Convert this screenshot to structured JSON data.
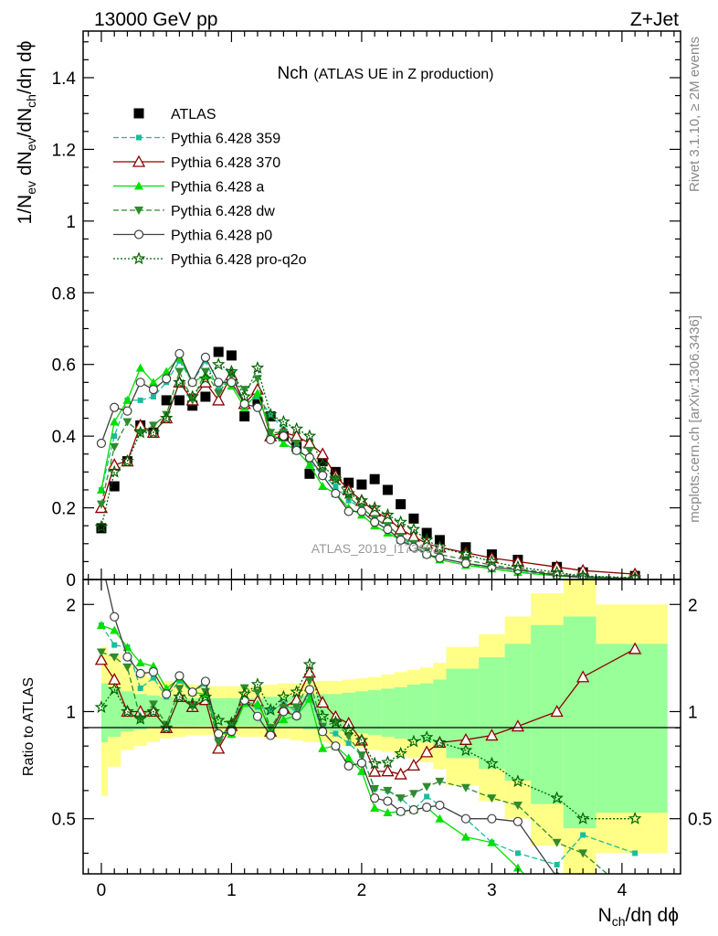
{
  "header": {
    "left": "13000 GeV pp",
    "right": "Z+Jet"
  },
  "side_labels": {
    "rivet": "Rivet 3.1.10, ≥ 2M events",
    "mcplots": "mcplots.cern.ch [arXiv:1306.3436]"
  },
  "watermark": "ATLAS_2019_I1736531",
  "chart_data": {
    "type": "line",
    "title_main": "Nch",
    "title_sub": "(ATLAS UE in Z production)",
    "xlabel": "N_ch/dη dϕ",
    "ylabel": "1/N_ev dN_ev/dN_ch/dη dϕ",
    "ratio_ylabel": "Ratio to ATLAS",
    "xlim": [
      -0.14,
      4.45
    ],
    "ylim": [
      0,
      1.53
    ],
    "ratio_ylim": [
      0.35,
      2.35
    ],
    "ratio_scale": "log",
    "legend_position": "top-left",
    "x_ticks": [
      "0",
      "1",
      "2",
      "3",
      "4"
    ],
    "y_ticks": [
      "0",
      "0.2",
      "0.4",
      "0.6",
      "0.8",
      "1",
      "1.2",
      "1.4"
    ],
    "ratio_ticks": [
      "0.5",
      "1",
      "2"
    ],
    "x": [
      0.0,
      0.1,
      0.2,
      0.3,
      0.4,
      0.5,
      0.6,
      0.7,
      0.8,
      0.9,
      1.0,
      1.1,
      1.2,
      1.3,
      1.4,
      1.5,
      1.6,
      1.7,
      1.8,
      1.9,
      2.0,
      2.1,
      2.2,
      2.3,
      2.4,
      2.5,
      2.6,
      2.8,
      3.0,
      3.2,
      3.5,
      3.7,
      4.1
    ],
    "band_edges": [
      0.0,
      0.05,
      0.15,
      0.25,
      0.35,
      0.45,
      0.55,
      0.65,
      0.75,
      0.85,
      0.95,
      1.05,
      1.15,
      1.25,
      1.35,
      1.45,
      1.55,
      1.65,
      1.75,
      1.85,
      1.95,
      2.05,
      2.15,
      2.25,
      2.35,
      2.45,
      2.55,
      2.65,
      2.9,
      3.1,
      3.3,
      3.55,
      3.8,
      4.35
    ],
    "band_outer": [
      [
        0.58,
        1.52
      ],
      [
        0.7,
        1.45
      ],
      [
        0.78,
        1.35
      ],
      [
        0.8,
        1.28
      ],
      [
        0.82,
        1.25
      ],
      [
        0.84,
        1.22
      ],
      [
        0.85,
        1.2
      ],
      [
        0.86,
        1.19
      ],
      [
        0.86,
        1.18
      ],
      [
        0.86,
        1.18
      ],
      [
        0.86,
        1.18
      ],
      [
        0.85,
        1.18
      ],
      [
        0.85,
        1.18
      ],
      [
        0.84,
        1.19
      ],
      [
        0.84,
        1.2
      ],
      [
        0.83,
        1.2
      ],
      [
        0.82,
        1.21
      ],
      [
        0.82,
        1.22
      ],
      [
        0.81,
        1.22
      ],
      [
        0.8,
        1.23
      ],
      [
        0.79,
        1.24
      ],
      [
        0.78,
        1.25
      ],
      [
        0.77,
        1.27
      ],
      [
        0.75,
        1.29
      ],
      [
        0.74,
        1.31
      ],
      [
        0.72,
        1.33
      ],
      [
        0.69,
        1.37
      ],
      [
        0.62,
        1.52
      ],
      [
        0.56,
        1.65
      ],
      [
        0.5,
        1.85
      ],
      [
        0.42,
        2.15
      ],
      [
        0.35,
        2.35
      ],
      [
        0.4,
        2.0
      ]
    ],
    "band_inner": [
      [
        0.82,
        1.2
      ],
      [
        0.85,
        1.17
      ],
      [
        0.88,
        1.14
      ],
      [
        0.89,
        1.12
      ],
      [
        0.9,
        1.11
      ],
      [
        0.9,
        1.1
      ],
      [
        0.91,
        1.1
      ],
      [
        0.91,
        1.09
      ],
      [
        0.91,
        1.09
      ],
      [
        0.91,
        1.09
      ],
      [
        0.91,
        1.09
      ],
      [
        0.91,
        1.09
      ],
      [
        0.91,
        1.09
      ],
      [
        0.9,
        1.1
      ],
      [
        0.9,
        1.1
      ],
      [
        0.9,
        1.11
      ],
      [
        0.89,
        1.11
      ],
      [
        0.89,
        1.12
      ],
      [
        0.88,
        1.12
      ],
      [
        0.88,
        1.13
      ],
      [
        0.87,
        1.14
      ],
      [
        0.86,
        1.15
      ],
      [
        0.85,
        1.16
      ],
      [
        0.84,
        1.17
      ],
      [
        0.83,
        1.19
      ],
      [
        0.82,
        1.2
      ],
      [
        0.8,
        1.23
      ],
      [
        0.74,
        1.32
      ],
      [
        0.69,
        1.42
      ],
      [
        0.64,
        1.55
      ],
      [
        0.55,
        1.75
      ],
      [
        0.47,
        1.85
      ],
      [
        0.52,
        1.55
      ]
    ],
    "series": [
      {
        "name": "ATLAS",
        "color": "#000000",
        "style": "data",
        "marker": "square",
        "values": [
          0.143,
          0.26,
          0.33,
          0.43,
          0.41,
          0.5,
          0.5,
          0.485,
          0.51,
          0.635,
          0.625,
          0.455,
          0.495,
          0.455,
          0.4,
          0.37,
          0.295,
          0.33,
          0.3,
          0.27,
          0.265,
          0.28,
          0.25,
          0.21,
          0.17,
          0.13,
          0.11,
          0.09,
          0.07,
          0.055,
          0.035,
          0.02,
          0.01
        ]
      },
      {
        "name": "Pythia 6.428 359",
        "color": "#1abc9c",
        "dash": "6,3",
        "marker": "square-small",
        "values": [
          0.25,
          0.4,
          0.5,
          0.5,
          0.51,
          0.55,
          0.61,
          0.55,
          0.61,
          0.53,
          0.58,
          0.49,
          0.51,
          0.46,
          0.42,
          0.37,
          0.33,
          0.29,
          0.26,
          0.22,
          0.2,
          0.17,
          0.15,
          0.12,
          0.09,
          0.075,
          0.06,
          0.045,
          0.03,
          0.022,
          0.013,
          0.009,
          0.004
        ]
      },
      {
        "name": "Pythia 6.428 370",
        "color": "#8b0000",
        "dash": "",
        "marker": "triangle-up-open",
        "values": [
          0.2,
          0.32,
          0.33,
          0.43,
          0.41,
          0.45,
          0.55,
          0.5,
          0.55,
          0.5,
          0.57,
          0.49,
          0.53,
          0.4,
          0.41,
          0.4,
          0.38,
          0.35,
          0.29,
          0.25,
          0.22,
          0.19,
          0.17,
          0.14,
          0.12,
          0.1,
          0.09,
          0.075,
          0.06,
          0.05,
          0.035,
          0.025,
          0.015
        ]
      },
      {
        "name": "Pythia 6.428 a",
        "color": "#00e000",
        "dash": "",
        "marker": "triangle-up",
        "values": [
          0.25,
          0.44,
          0.5,
          0.59,
          0.55,
          0.58,
          0.62,
          0.55,
          0.57,
          0.55,
          0.54,
          0.48,
          0.52,
          0.41,
          0.38,
          0.36,
          0.32,
          0.26,
          0.24,
          0.2,
          0.18,
          0.15,
          0.13,
          0.11,
          0.09,
          0.07,
          0.055,
          0.04,
          0.03,
          0.02,
          0.01,
          0.005,
          0.002
        ]
      },
      {
        "name": "Pythia 6.428 dw",
        "color": "#2e8b2e",
        "dash": "6,3",
        "marker": "triangle-down",
        "values": [
          0.21,
          0.37,
          0.44,
          0.41,
          0.43,
          0.46,
          0.58,
          0.5,
          0.58,
          0.52,
          0.57,
          0.53,
          0.56,
          0.41,
          0.41,
          0.38,
          0.36,
          0.3,
          0.28,
          0.23,
          0.2,
          0.17,
          0.15,
          0.12,
          0.1,
          0.08,
          0.07,
          0.055,
          0.04,
          0.03,
          0.015,
          0.008,
          0.003
        ]
      },
      {
        "name": "Pythia 6.428 p0",
        "color": "#404040",
        "dash": "",
        "marker": "circle-open",
        "values": [
          0.38,
          0.48,
          0.47,
          0.55,
          0.53,
          0.56,
          0.63,
          0.55,
          0.62,
          0.55,
          0.55,
          0.49,
          0.48,
          0.39,
          0.4,
          0.36,
          0.34,
          0.29,
          0.24,
          0.19,
          0.19,
          0.16,
          0.14,
          0.11,
          0.09,
          0.07,
          0.06,
          0.045,
          0.035,
          0.027,
          0.012,
          0.006,
          0.002
        ]
      },
      {
        "name": "Pythia 6.428 pro-q2o",
        "color": "#006400",
        "dash": "2,2",
        "marker": "star-open",
        "values": [
          0.147,
          0.3,
          0.33,
          0.41,
          0.41,
          0.45,
          0.55,
          0.51,
          0.56,
          0.6,
          0.58,
          0.51,
          0.59,
          0.46,
          0.44,
          0.42,
          0.4,
          0.32,
          0.28,
          0.24,
          0.22,
          0.2,
          0.18,
          0.16,
          0.14,
          0.11,
          0.09,
          0.07,
          0.05,
          0.035,
          0.02,
          0.01,
          0.005
        ]
      }
    ]
  }
}
